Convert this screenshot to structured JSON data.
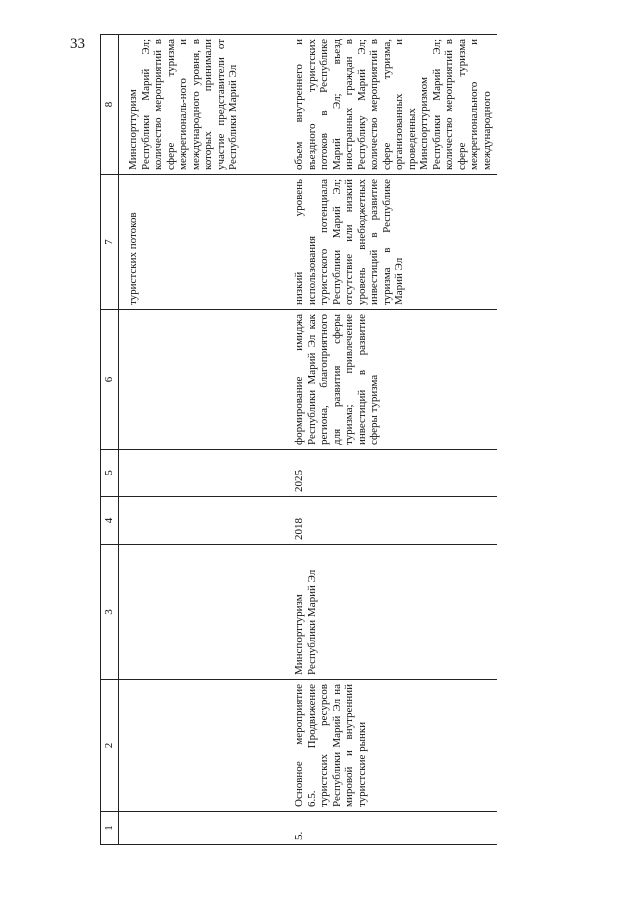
{
  "page_number": "33",
  "table": {
    "header": [
      "1",
      "2",
      "3",
      "4",
      "5",
      "6",
      "7",
      "8"
    ],
    "rows": [
      [
        null,
        null,
        null,
        null,
        null,
        null,
        "туристских потоков",
        "Минспорттуризм Республики Марий Эл; количество мероприятий в сфере туризма межрегиональ-ного и международного уровня, в которых принимали участие представители от Республики Марий Эл"
      ],
      [
        "5.",
        "Основное мероприятие 6.5. Продвижение туристских ресурсов Республики Марий Эл на мировой и внутренний туристские рынки",
        "Минспорттуризм Республики Марий Эл",
        "2018",
        "2025",
        "формирование имиджа Республики Марий Эл как региона, благоприятного для развития сферы туризма; привлечение инвестиций в развитие сферы туризма",
        "низкий уровень использования туристского потенциала Республики Марий Эл; отсутствие или низкий уровень внебюджетных инвестиций в развитие туризма в Республике Марий Эл",
        "объем внутреннего и въездного туристских потоков в Республике Марий Эл; въезд иностранных граждан в Республику Марий Эл; количество мероприятий в сфере туризма, организованных и проведенных Минспорттуризмом Республики Марий Эл; количество мероприятий в сфере туризма межрегионального и международного"
      ]
    ]
  }
}
